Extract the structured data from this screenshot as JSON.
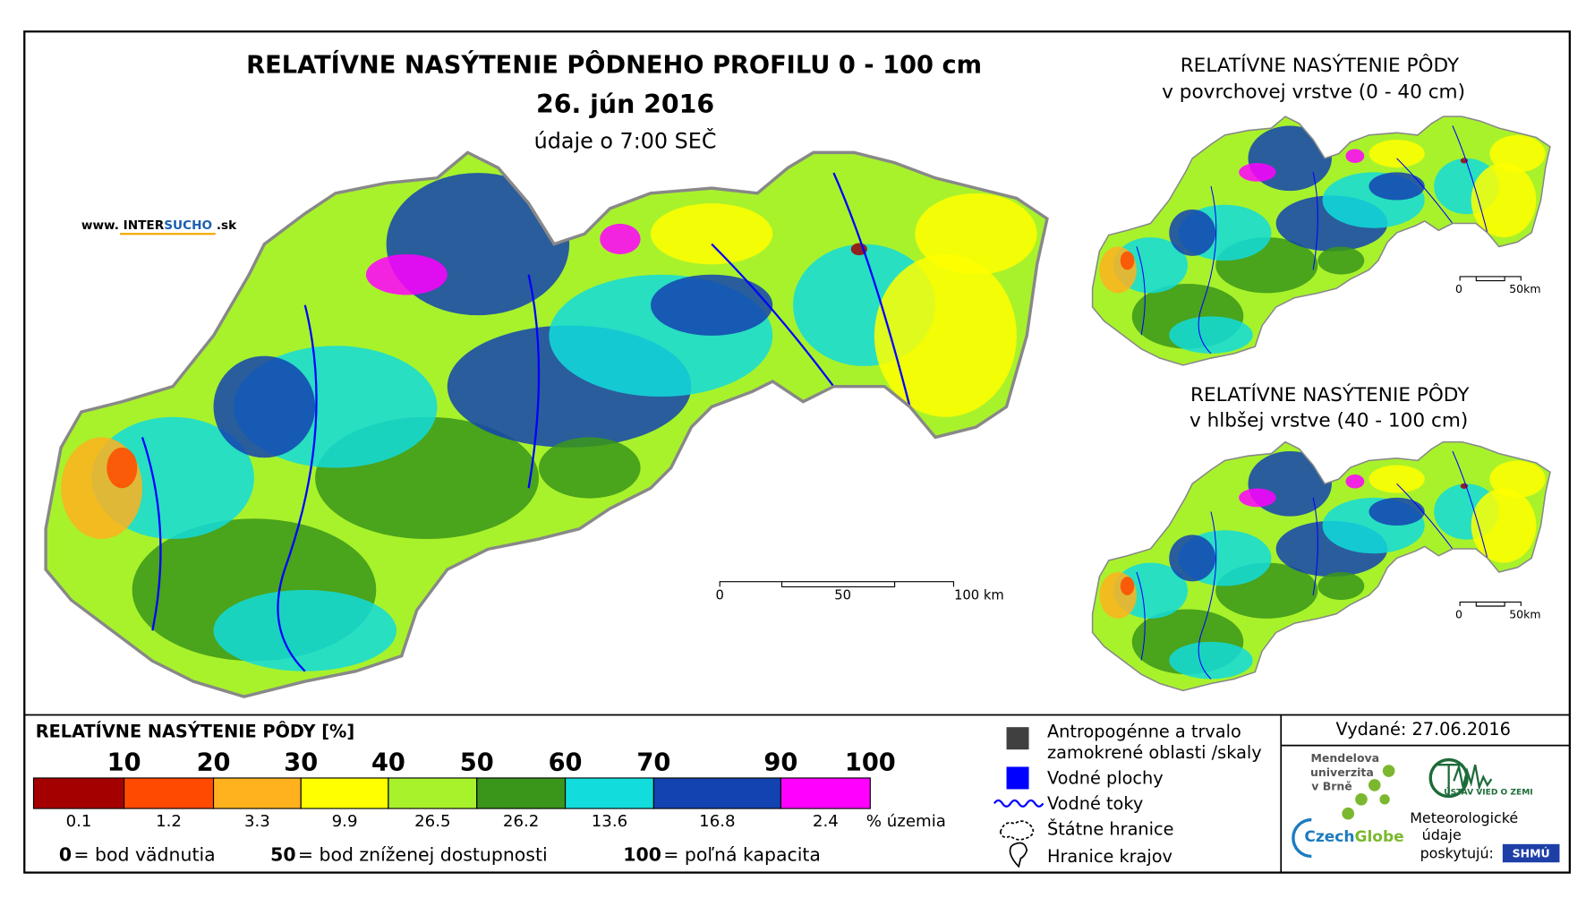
{
  "main_map": {
    "title": "RELATÍVNE NASÝTENIE PÔDNEHO PROFILU 0 - 100 cm",
    "date": "26. jún 2016",
    "time": "údaje o 7:00 SEČ",
    "website": [
      "www. INTER",
      "SUCHO",
      " .sk"
    ],
    "scale": [
      "0",
      "50",
      "100 km"
    ]
  },
  "inset_top": {
    "title": "RELATÍVNE NASÝTENIE PÔDY",
    "subtitle": "v povrchovej vrstve (0 - 40 cm)",
    "scale": [
      "0",
      "50km"
    ]
  },
  "inset_bottom": {
    "title": "RELATÍVNE NASÝTENIE PÔDY",
    "subtitle": "v hlbšej vrstve (40 - 100 cm)",
    "scale": [
      "0",
      "50km"
    ]
  },
  "legend": {
    "title": "RELATÍVNE NASÝTENIE PÔDY [%]",
    "thresholds": [
      10,
      20,
      30,
      40,
      50,
      60,
      70,
      90,
      100
    ],
    "classes": [
      {
        "color": "#a50000",
        "share": 0.1
      },
      {
        "color": "#ff4a00",
        "share": 1.2
      },
      {
        "color": "#ffb21e",
        "share": 3.3
      },
      {
        "color": "#ffff00",
        "share": 9.9
      },
      {
        "color": "#a8f22c",
        "share": 26.5
      },
      {
        "color": "#3a961a",
        "share": 26.2
      },
      {
        "color": "#12dcdc",
        "share": 13.6
      },
      {
        "color": "#1343b0",
        "share": 16.8
      },
      {
        "color": "#ff00ff",
        "share": 2.4
      }
    ],
    "share_unit": "% územia",
    "notes": [
      {
        "value": "0",
        "text": "= bod vädnutia"
      },
      {
        "value": "50",
        "text": "= bod zníženej dostupnosti"
      },
      {
        "value": "100",
        "text": "= poľná kapacita"
      }
    ]
  },
  "symbols": [
    [
      "Antropogénne a trvalo",
      "zamokrené oblasti /skaly"
    ],
    [
      "Vodné plochy"
    ],
    [
      "Vodné toky"
    ],
    [
      "Štátne hranice"
    ],
    [
      "Hranice krajov"
    ]
  ],
  "issued": "Vydané: 27.06.2016",
  "credits": {
    "mendel": [
      "Mendelova",
      "univerzita",
      "v Brně"
    ],
    "czechglobe": [
      "Czech",
      "Globe"
    ],
    "ustav": "ÚSTAV VIED O ZEMI",
    "meteo": [
      "Meteorologické",
      "údaje",
      "poskytujú:"
    ],
    "shmu": "SHMÚ"
  }
}
